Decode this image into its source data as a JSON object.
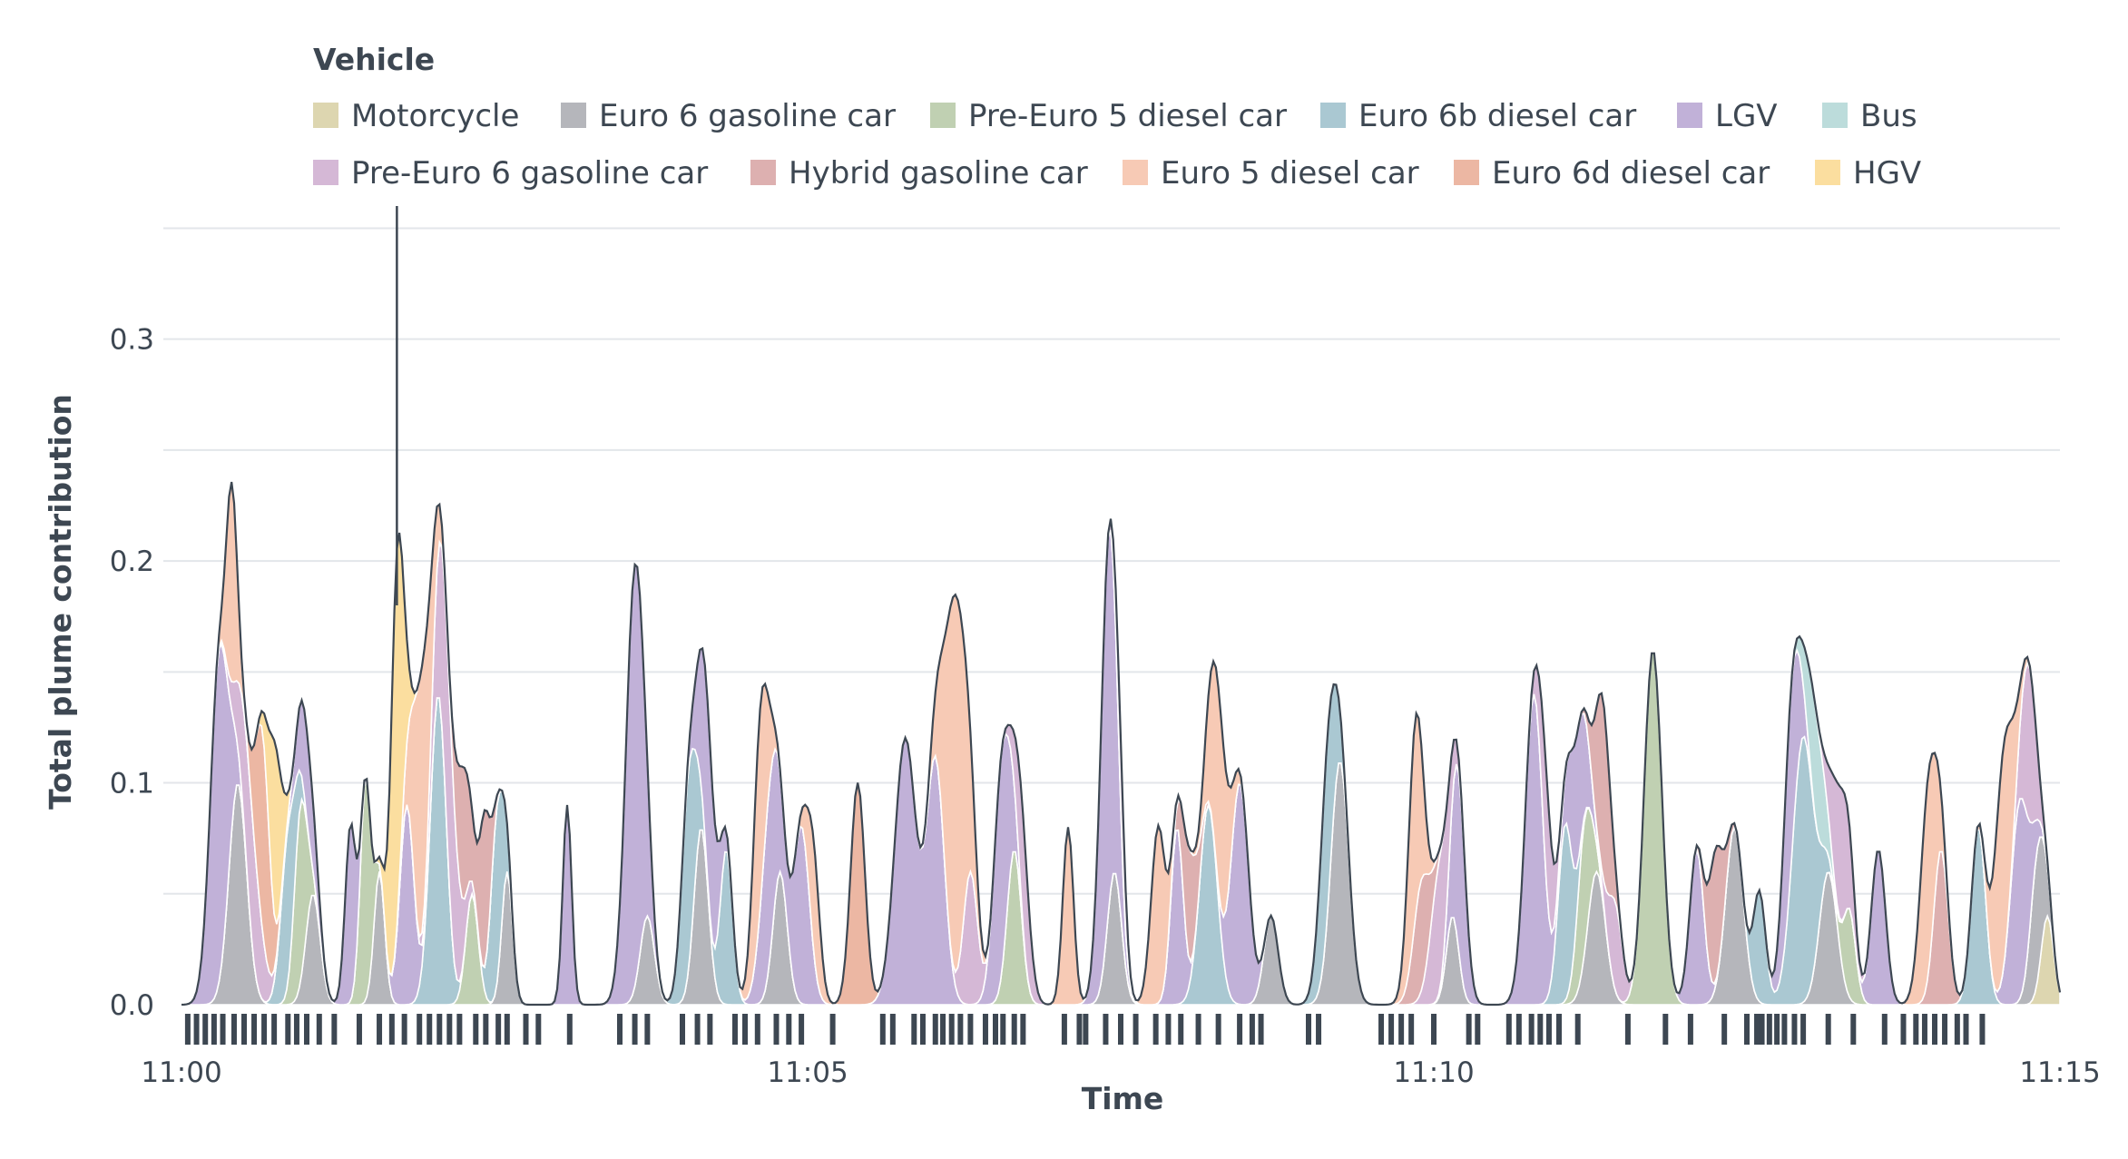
{
  "chart_data": {
    "type": "area",
    "xlabel": "Time",
    "ylabel": "Total plume contribution",
    "x_ticks": [
      "11:00",
      "11:05",
      "11:10",
      "11:15"
    ],
    "xlim_minutes": [
      0,
      15
    ],
    "y_ticks": [
      "0.0",
      "0.1",
      "0.2",
      "0.3"
    ],
    "ylim": [
      0,
      0.36
    ],
    "grid": "horizontal",
    "legend": {
      "title": "Vehicle",
      "placement": "top-left",
      "items": [
        {
          "label": "Motorcycle",
          "color": "#ddd6b0"
        },
        {
          "label": "Euro 6 gasoline car",
          "color": "#b5b6bb"
        },
        {
          "label": "Pre-Euro 5 diesel car",
          "color": "#c0d0b2"
        },
        {
          "label": "Euro 6b diesel car",
          "color": "#aac8d2"
        },
        {
          "label": "LGV",
          "color": "#c1b1d8"
        },
        {
          "label": "Bus",
          "color": "#bcdcdb"
        },
        {
          "label": "Pre-Euro 6 gasoline car",
          "color": "#d5b8d6"
        },
        {
          "label": "Hybrid gasoline car",
          "color": "#ddb0b0"
        },
        {
          "label": "Euro 5 diesel car",
          "color": "#f7cab5"
        },
        {
          "label": "Euro 6d diesel car",
          "color": "#ecb7a3"
        },
        {
          "label": "HGV",
          "color": "#fbde9f"
        }
      ]
    },
    "line_color": "#3d4752",
    "spike": {
      "t": 1.72,
      "y": 0.36
    },
    "vehicle_passes_minutes": [
      0.05,
      0.12,
      0.19,
      0.26,
      0.33,
      0.42,
      0.5,
      0.58,
      0.66,
      0.74,
      0.85,
      0.92,
      1.0,
      1.1,
      1.22,
      1.42,
      1.58,
      1.68,
      1.78,
      1.9,
      1.98,
      2.06,
      2.14,
      2.22,
      2.35,
      2.43,
      2.53,
      2.6,
      2.75,
      2.85,
      3.1,
      3.5,
      3.62,
      3.72,
      4.0,
      4.12,
      4.22,
      4.42,
      4.5,
      4.6,
      4.75,
      4.85,
      4.95,
      5.2,
      5.6,
      5.68,
      5.85,
      5.92,
      6.02,
      6.08,
      6.15,
      6.22,
      6.3,
      6.42,
      6.5,
      6.56,
      6.65,
      6.72,
      7.05,
      7.17,
      7.22,
      7.38,
      7.5,
      7.62,
      7.78,
      7.88,
      7.98,
      8.12,
      8.28,
      8.45,
      8.55,
      8.62,
      9.0,
      9.08,
      9.58,
      9.66,
      9.74,
      9.82,
      10.0,
      10.28,
      10.35,
      10.6,
      10.68,
      10.78,
      10.85,
      10.92,
      11.0,
      11.15,
      11.55,
      11.85,
      12.05,
      12.32,
      12.5,
      12.58,
      12.62,
      12.68,
      12.74,
      12.8,
      12.88,
      12.95,
      13.15,
      13.35,
      13.6,
      13.75,
      13.85,
      13.92,
      14.0,
      14.08,
      14.18,
      14.25,
      14.38
    ]
  }
}
